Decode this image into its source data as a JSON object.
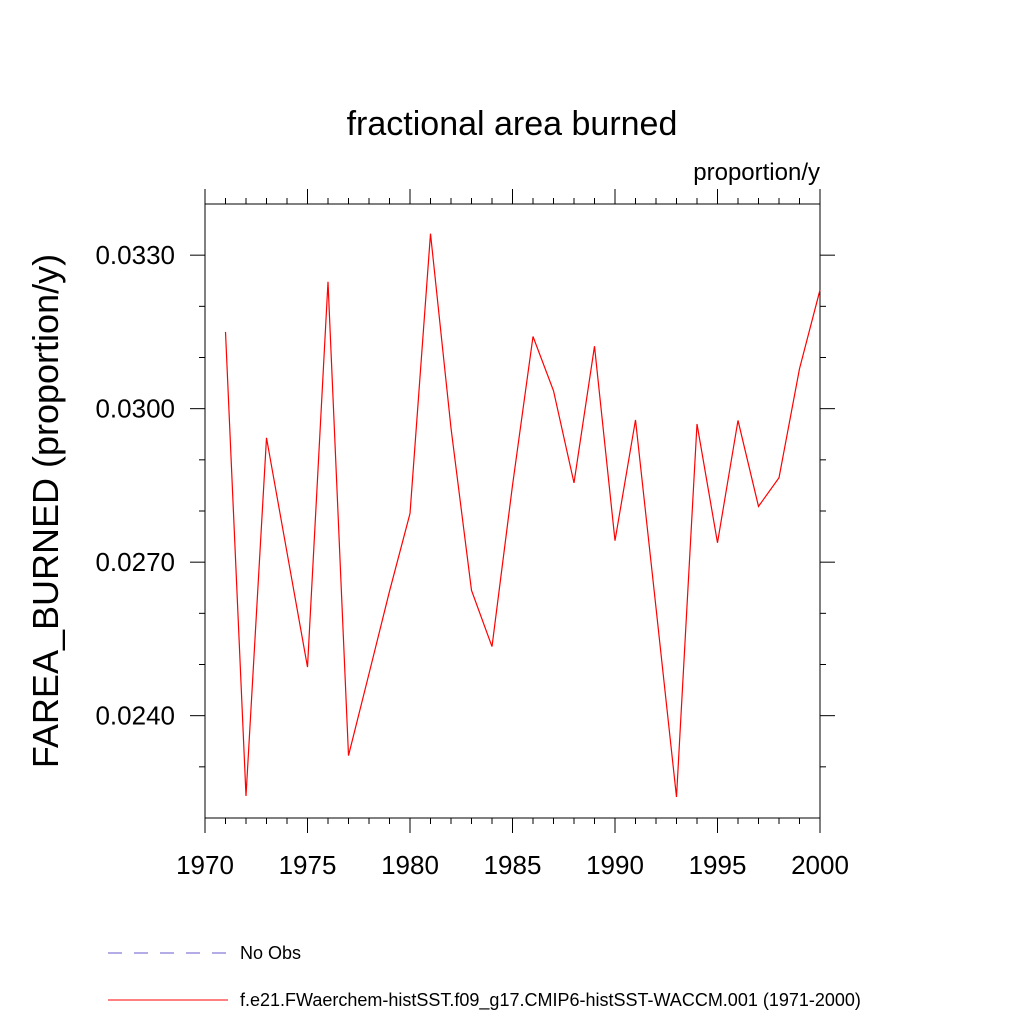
{
  "chart_data": {
    "type": "line",
    "title": "fractional area burned",
    "units": "proportion/y",
    "ylabel": "FAREA_BURNED  (proportion/y)",
    "xlabel": "",
    "xlim": [
      1970,
      2000
    ],
    "ylim": [
      0.022,
      0.034
    ],
    "x_ticks": [
      1970,
      1975,
      1980,
      1985,
      1990,
      1995,
      2000
    ],
    "y_ticks": [
      0.024,
      0.027,
      0.03,
      0.033
    ],
    "y_tick_labels": [
      "0.0240",
      "0.0270",
      "0.0300",
      "0.0330"
    ],
    "legend_position": "bottom",
    "series": [
      {
        "name": "f.e21.FWaerchem-histSST.f09_g17.CMIP6-histSST-WACCM.001 (1971-2000)",
        "color": "#ff0000",
        "style": "solid",
        "x": [
          1971,
          1972,
          1973,
          1974,
          1975,
          1976,
          1977,
          1978,
          1979,
          1980,
          1981,
          1982,
          1983,
          1984,
          1985,
          1986,
          1987,
          1988,
          1989,
          1990,
          1991,
          1992,
          1993,
          1994,
          1995,
          1996,
          1997,
          1998,
          1999,
          2000
        ],
        "y": [
          0.0315,
          0.02243,
          0.02943,
          0.02719,
          0.02495,
          0.03248,
          0.02322,
          0.02482,
          0.02643,
          0.02795,
          0.03342,
          0.02962,
          0.02645,
          0.02535,
          0.0285,
          0.03141,
          0.03035,
          0.02855,
          0.03122,
          0.02742,
          0.02978,
          0.02611,
          0.02241,
          0.0297,
          0.02738,
          0.02977,
          0.02809,
          0.02865,
          0.03078,
          0.03232
        ]
      }
    ],
    "legend": [
      {
        "label": "No Obs",
        "color": "#6a5acd",
        "style": "dashed"
      },
      {
        "label": "f.e21.FWaerchem-histSST.f09_g17.CMIP6-histSST-WACCM.001 (1971-2000)",
        "color": "#ff0000",
        "style": "solid"
      }
    ]
  }
}
